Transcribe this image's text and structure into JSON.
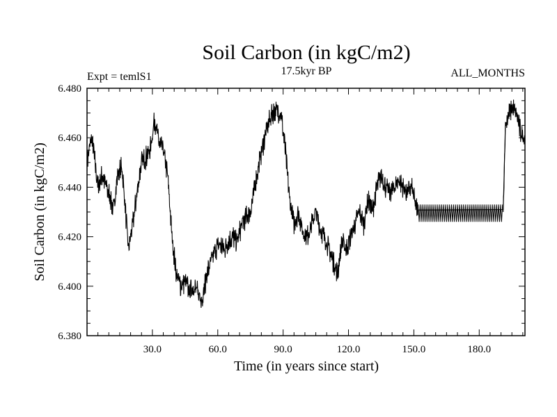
{
  "chart_data": {
    "type": "line",
    "title": "Soil Carbon (in kgC/m2)",
    "subtitle_left": "Expt = temlS1",
    "subtitle_center": "17.5kyr BP",
    "subtitle_right": "ALL_MONTHS",
    "xlabel": "Time (in years since start)",
    "ylabel": "Soil Carbon (in kgC/m2)",
    "xlim": [
      0,
      201
    ],
    "ylim": [
      6.38,
      6.48
    ],
    "x_ticks": [
      30,
      60,
      90,
      120,
      150,
      180
    ],
    "x_tick_labels": [
      "30.0",
      "60.0",
      "90.0",
      "120.0",
      "150.0",
      "180.0"
    ],
    "y_ticks": [
      6.38,
      6.4,
      6.42,
      6.44,
      6.46,
      6.48
    ],
    "y_tick_labels": [
      "6.380",
      "6.400",
      "6.420",
      "6.440",
      "6.460",
      "6.480"
    ],
    "grid": false,
    "line_color": "#000000",
    "series": [
      {
        "x": [
          0,
          1,
          2,
          3,
          5,
          7,
          9,
          11,
          12,
          14,
          16,
          17,
          19,
          21,
          23,
          25,
          27,
          29,
          31,
          33,
          35,
          37,
          39,
          41,
          43,
          45,
          47,
          49,
          51,
          53,
          55,
          57,
          59,
          61,
          63,
          65,
          67,
          69,
          71,
          73,
          75,
          77,
          79,
          81,
          83,
          85,
          87,
          89,
          91,
          93,
          95,
          97,
          99,
          101,
          103,
          105,
          107,
          109,
          111,
          113,
          115,
          117,
          119,
          121,
          123,
          125,
          127,
          129,
          131,
          133,
          135,
          137,
          139,
          141,
          143,
          145,
          147,
          149,
          151,
          152,
          191,
          192,
          193,
          195,
          197,
          199,
          201
        ],
        "y": [
          6.45,
          6.455,
          6.46,
          6.455,
          6.44,
          6.445,
          6.44,
          6.435,
          6.43,
          6.445,
          6.448,
          6.438,
          6.415,
          6.425,
          6.438,
          6.45,
          6.452,
          6.455,
          6.468,
          6.458,
          6.455,
          6.445,
          6.42,
          6.405,
          6.4,
          6.402,
          6.398,
          6.4,
          6.397,
          6.395,
          6.405,
          6.41,
          6.415,
          6.417,
          6.415,
          6.418,
          6.42,
          6.418,
          6.425,
          6.428,
          6.43,
          6.44,
          6.45,
          6.458,
          6.465,
          6.47,
          6.471,
          6.47,
          6.455,
          6.435,
          6.425,
          6.43,
          6.422,
          6.42,
          6.425,
          6.43,
          6.423,
          6.42,
          6.415,
          6.41,
          6.405,
          6.418,
          6.415,
          6.42,
          6.425,
          6.43,
          6.425,
          6.435,
          6.43,
          6.44,
          6.445,
          6.44,
          6.438,
          6.44,
          6.443,
          6.44,
          6.438,
          6.44,
          6.432,
          6.43,
          6.43,
          6.465,
          6.468,
          6.472,
          6.47,
          6.462,
          6.46
        ]
      }
    ],
    "band": {
      "x_range": [
        152,
        191
      ],
      "y_range": [
        6.426,
        6.433
      ]
    }
  }
}
